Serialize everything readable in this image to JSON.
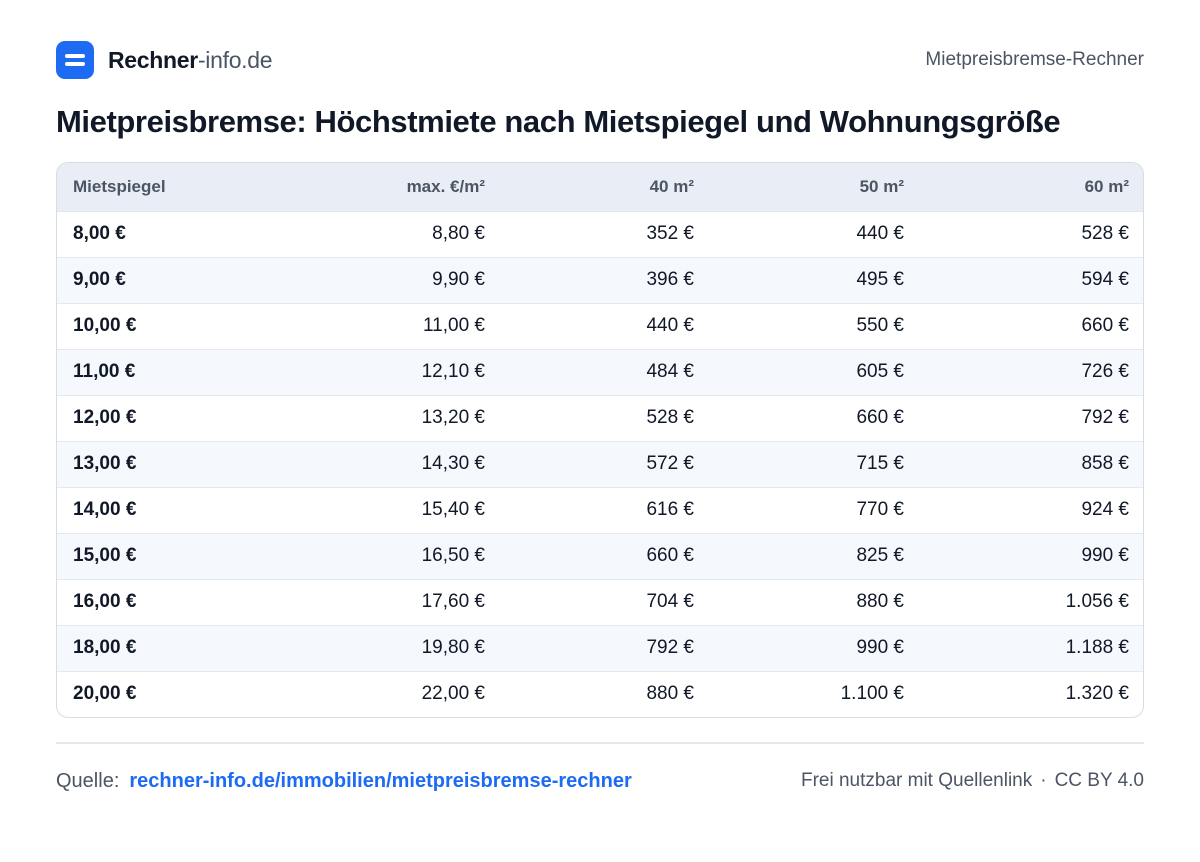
{
  "header": {
    "brand_name": "Rechner",
    "brand_domain": "-info.de",
    "page_label": "Mietpreisbremse-Rechner",
    "logo_icon": "equals-icon",
    "accent_color": "#1d6bf3"
  },
  "title": "Mietpreisbremse: Höchstmiete nach Mietspiegel und Wohnungsgröße",
  "table": {
    "columns": [
      "Mietspiegel",
      "max. €/m²",
      "40 m²",
      "50 m²",
      "60 m²"
    ],
    "rows": [
      [
        "8,00 €",
        "8,80 €",
        "352 €",
        "440 €",
        "528 €"
      ],
      [
        "9,00 €",
        "9,90 €",
        "396 €",
        "495 €",
        "594 €"
      ],
      [
        "10,00 €",
        "11,00 €",
        "440 €",
        "550 €",
        "660 €"
      ],
      [
        "11,00 €",
        "12,10 €",
        "484 €",
        "605 €",
        "726 €"
      ],
      [
        "12,00 €",
        "13,20 €",
        "528 €",
        "660 €",
        "792 €"
      ],
      [
        "13,00 €",
        "14,30 €",
        "572 €",
        "715 €",
        "858 €"
      ],
      [
        "14,00 €",
        "15,40 €",
        "616 €",
        "770 €",
        "924 €"
      ],
      [
        "15,00 €",
        "16,50 €",
        "660 €",
        "825 €",
        "990 €"
      ],
      [
        "16,00 €",
        "17,60 €",
        "704 €",
        "880 €",
        "1.056 €"
      ],
      [
        "18,00 €",
        "19,80 €",
        "792 €",
        "990 €",
        "1.188 €"
      ],
      [
        "20,00 €",
        "22,00 €",
        "880 €",
        "1.100 €",
        "1.320 €"
      ]
    ]
  },
  "footer": {
    "source_label": "Quelle:",
    "source_link": "rechner-info.de/immobilien/mietpreisbremse-rechner",
    "usage": "Frei nutzbar mit Quellenlink",
    "separator": "·",
    "license": "CC BY 4.0"
  }
}
